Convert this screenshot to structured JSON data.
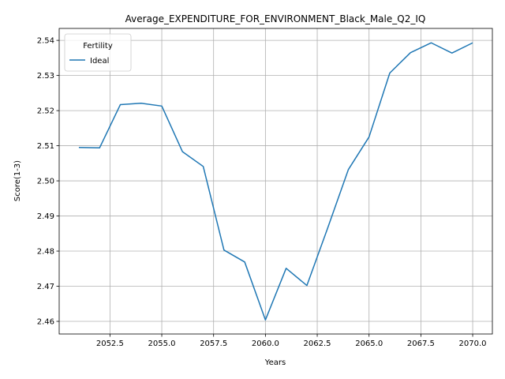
{
  "chart_data": {
    "type": "line",
    "title": "Average_EXPENDITURE_FOR_ENVIRONMENT_Black_Male_Q2_IQ",
    "xlabel": "Years",
    "ylabel": "Score(1-3)",
    "xlim": [
      2050.05,
      2070.95
    ],
    "ylim": [
      2.4564,
      2.5434
    ],
    "x_ticks": [
      2052.5,
      2055.0,
      2057.5,
      2060.0,
      2062.5,
      2065.0,
      2067.5,
      2070.0
    ],
    "x_tick_labels": [
      "2052.5",
      "2055.0",
      "2057.5",
      "2060.0",
      "2062.5",
      "2065.0",
      "2067.5",
      "2070.0"
    ],
    "y_ticks": [
      2.46,
      2.47,
      2.48,
      2.49,
      2.5,
      2.51,
      2.52,
      2.53,
      2.54
    ],
    "y_tick_labels": [
      "2.46",
      "2.47",
      "2.48",
      "2.49",
      "2.50",
      "2.51",
      "2.52",
      "2.53",
      "2.54"
    ],
    "grid": true,
    "legend": {
      "title": "Fertility",
      "placement": "top-left"
    },
    "series": [
      {
        "name": "Ideal",
        "color": "#1f77b4",
        "x": [
          2051,
          2052,
          2053,
          2054,
          2055,
          2056,
          2057,
          2058,
          2059,
          2060,
          2061,
          2062,
          2063,
          2064,
          2065,
          2066,
          2067,
          2068,
          2069,
          2070
        ],
        "values": [
          2.5095,
          2.5094,
          2.5217,
          2.5221,
          2.5213,
          2.5083,
          2.5041,
          2.4803,
          2.4769,
          2.4604,
          2.4751,
          2.4702,
          2.4865,
          2.5032,
          2.5125,
          2.5307,
          2.5365,
          2.5393,
          2.5364,
          2.5393
        ]
      }
    ]
  }
}
